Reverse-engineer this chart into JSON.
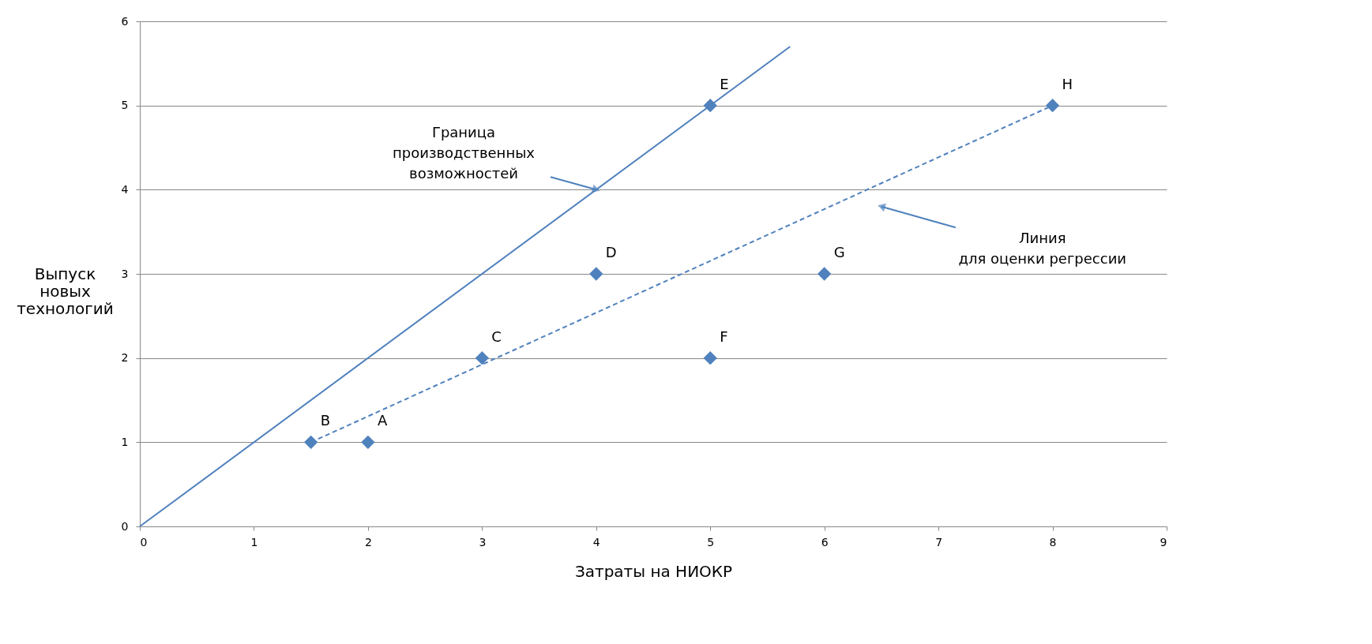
{
  "chart_data": {
    "type": "scatter",
    "xlabel": "Затраты на НИОКР",
    "ylabel": "Выпуск\nновых\nтехнологий",
    "xlim": [
      0,
      9
    ],
    "ylim": [
      0,
      6
    ],
    "xticks": [
      0,
      1,
      2,
      3,
      4,
      5,
      6,
      7,
      8,
      9
    ],
    "yticks": [
      0,
      1,
      2,
      3,
      4,
      5,
      6
    ],
    "grid": "y",
    "series": [
      {
        "type": "line",
        "color": "#4f81bd",
        "x": [
          0,
          5.7
        ],
        "values": [
          0,
          5.7
        ],
        "line_style": "solid",
        "marker": "none"
      },
      {
        "type": "line",
        "color": "#4f81bd",
        "x": [
          1.5,
          8
        ],
        "values": [
          1,
          5
        ],
        "line_style": "dashed",
        "marker": "none"
      },
      {
        "color": "#4f81bd",
        "marker": "diamond",
        "x": [
          2,
          1.5,
          3,
          4,
          5,
          5,
          6,
          8
        ],
        "values": [
          1,
          1,
          2,
          3,
          5,
          2,
          3,
          5
        ],
        "value_labels": [
          "A",
          "B",
          "C",
          "D",
          "E",
          "F",
          "G",
          "H"
        ]
      }
    ],
    "annotations": [
      {
        "text": "Граница\nпроизводственных\nвозможностей",
        "x": 4,
        "y": 4
      },
      {
        "text": "Линия\nдля оценки регрессии",
        "x": 6.5,
        "y": 3.8
      }
    ]
  }
}
